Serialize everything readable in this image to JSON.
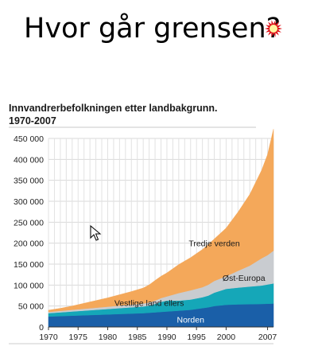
{
  "headline": "Hvor går grensen?",
  "chart_data": {
    "type": "area",
    "stacked": true,
    "title_line1": "Innvandrerbefolkningen etter landbakgrunn.",
    "title_line2": "1970-2007",
    "xlim": [
      1970,
      2008
    ],
    "ylim": [
      0,
      450000
    ],
    "x_tick_values": [
      1970,
      1975,
      1980,
      1985,
      1990,
      1995,
      2000,
      2007
    ],
    "x_tick_labels": [
      "1970",
      "1975",
      "1980",
      "1985",
      "1990",
      "1995",
      "2000",
      "2007"
    ],
    "y_tick_values": [
      0,
      50000,
      100000,
      150000,
      200000,
      250000,
      300000,
      350000,
      400000,
      450000
    ],
    "y_tick_labels": [
      "0",
      "50 000",
      "100 000",
      "150 000",
      "200 000",
      "250 000",
      "300 000",
      "350 000",
      "400 000",
      "450 000"
    ],
    "grid": true,
    "x": [
      1970,
      1972,
      1974,
      1976,
      1978,
      1980,
      1982,
      1984,
      1986,
      1987,
      1988,
      1989,
      1990,
      1991,
      1992,
      1994,
      1996,
      1997,
      1998,
      2000,
      2002,
      2004,
      2006,
      2007,
      2008
    ],
    "series": [
      {
        "name": "Norden",
        "color": "#1a5fa8",
        "label_x": 1994,
        "label_y": 18000,
        "values": [
          25000,
          26000,
          27000,
          28000,
          29000,
          30000,
          31000,
          32000,
          33000,
          34000,
          35000,
          36000,
          37000,
          38000,
          39000,
          41000,
          45000,
          47000,
          50000,
          53000,
          54000,
          54500,
          55000,
          55500,
          56000
        ]
      },
      {
        "name": "Vestlige land ellers",
        "color": "#15a7b8",
        "label_x": 1987,
        "label_y": 58000,
        "values": [
          8000,
          9000,
          10000,
          11000,
          12000,
          13000,
          14000,
          15000,
          16000,
          17000,
          20000,
          24000,
          26000,
          25000,
          24000,
          24500,
          26000,
          28000,
          32000,
          38000,
          40000,
          42000,
          44000,
          46000,
          48000
        ]
      },
      {
        "name": "Øst-Europa",
        "color": "#c9ccd0",
        "label_x": 2003,
        "label_y": 118000,
        "values": [
          3000,
          3500,
          4000,
          4500,
          5000,
          5500,
          6000,
          6500,
          7000,
          7500,
          8000,
          9000,
          10000,
          14000,
          18000,
          22000,
          24000,
          26000,
          28000,
          30000,
          40000,
          50000,
          65000,
          70000,
          78000
        ]
      },
      {
        "name": "Tredje verden",
        "color": "#f4a85a",
        "label_x": 1998,
        "label_y": 200000,
        "values": [
          4000,
          6000,
          9000,
          13000,
          17000,
          21000,
          26000,
          31000,
          37000,
          42000,
          48000,
          52000,
          56000,
          62000,
          68000,
          78000,
          90000,
          96000,
          100000,
          115000,
          140000,
          170000,
          210000,
          240000,
          290000
        ]
      }
    ]
  }
}
